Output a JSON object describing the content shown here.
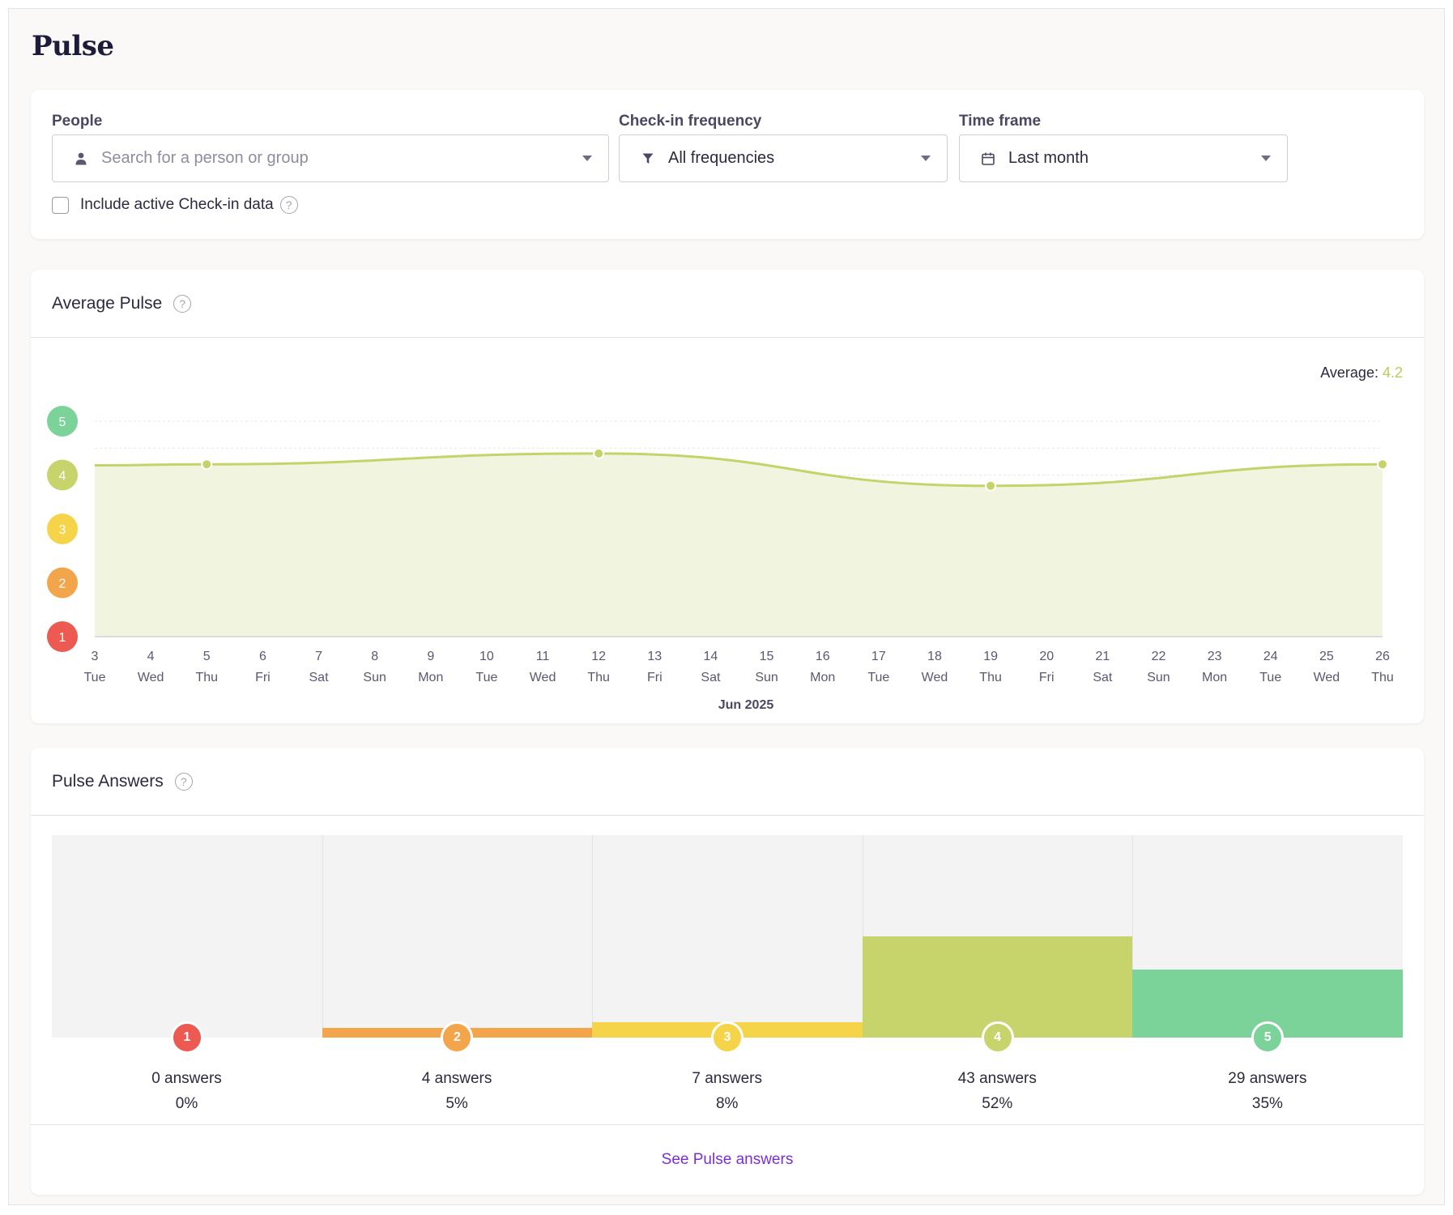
{
  "page": {
    "title": "Pulse"
  },
  "filters": {
    "people": {
      "label": "People",
      "placeholder": "Search for a person or group",
      "icon": "person-icon"
    },
    "frequency": {
      "label": "Check-in frequency",
      "value": "All frequencies",
      "icon": "filter-icon"
    },
    "timeframe": {
      "label": "Time frame",
      "value": "Last month",
      "icon": "calendar-icon"
    },
    "include_active": {
      "label": "Include active Check-in data",
      "checked": false
    }
  },
  "average_pulse": {
    "title": "Average Pulse",
    "average_label": "Average:",
    "average_value": "4.2",
    "help": "?"
  },
  "pulse_answers": {
    "title": "Pulse Answers",
    "help": "?",
    "link": "See Pulse answers",
    "buckets": [
      {
        "score": "1",
        "count_label": "0 answers",
        "pct_label": "0%",
        "fraction": 0.0,
        "color": "#ec5a52"
      },
      {
        "score": "2",
        "count_label": "4 answers",
        "pct_label": "5%",
        "fraction": 0.05,
        "color": "#f2a54a"
      },
      {
        "score": "3",
        "count_label": "7 answers",
        "pct_label": "8%",
        "fraction": 0.08,
        "color": "#f6d44a"
      },
      {
        "score": "4",
        "count_label": "43 answers",
        "pct_label": "52%",
        "fraction": 0.52,
        "color": "#c7d46b"
      },
      {
        "score": "5",
        "count_label": "29 answers",
        "pct_label": "35%",
        "fraction": 0.35,
        "color": "#7bd39a"
      }
    ]
  },
  "chart_data": {
    "type": "area",
    "title": "",
    "xlabel": "Jun 2025",
    "ylabel": "",
    "ylim": [
      1,
      5
    ],
    "y_levels": [
      {
        "value": 5,
        "label": "5",
        "color": "#7bd39a"
      },
      {
        "value": 4,
        "label": "4",
        "color": "#c7d46b"
      },
      {
        "value": 3,
        "label": "3",
        "color": "#f6d44a"
      },
      {
        "value": 2,
        "label": "2",
        "color": "#f2a54a"
      },
      {
        "value": 1,
        "label": "1",
        "color": "#ec5a52"
      }
    ],
    "x_ticks": [
      {
        "day": "3",
        "weekday": "Tue"
      },
      {
        "day": "4",
        "weekday": "Wed"
      },
      {
        "day": "5",
        "weekday": "Thu"
      },
      {
        "day": "6",
        "weekday": "Fri"
      },
      {
        "day": "7",
        "weekday": "Sat"
      },
      {
        "day": "8",
        "weekday": "Sun"
      },
      {
        "day": "9",
        "weekday": "Mon"
      },
      {
        "day": "10",
        "weekday": "Tue"
      },
      {
        "day": "11",
        "weekday": "Wed"
      },
      {
        "day": "12",
        "weekday": "Thu"
      },
      {
        "day": "13",
        "weekday": "Fri"
      },
      {
        "day": "14",
        "weekday": "Sat"
      },
      {
        "day": "15",
        "weekday": "Sun"
      },
      {
        "day": "16",
        "weekday": "Mon"
      },
      {
        "day": "17",
        "weekday": "Tue"
      },
      {
        "day": "18",
        "weekday": "Wed"
      },
      {
        "day": "19",
        "weekday": "Thu"
      },
      {
        "day": "20",
        "weekday": "Fri"
      },
      {
        "day": "21",
        "weekday": "Sat"
      },
      {
        "day": "22",
        "weekday": "Sun"
      },
      {
        "day": "23",
        "weekday": "Mon"
      },
      {
        "day": "24",
        "weekday": "Tue"
      },
      {
        "day": "25",
        "weekday": "Wed"
      },
      {
        "day": "26",
        "weekday": "Thu"
      }
    ],
    "series": [
      {
        "values": [
          {
            "x": "2025-06-03",
            "y": 4.18
          },
          {
            "x": "2025-06-05",
            "y": 4.2
          },
          {
            "x": "2025-06-12",
            "y": 4.4
          },
          {
            "x": "2025-06-19",
            "y": 3.8
          },
          {
            "x": "2025-06-26",
            "y": 4.2
          }
        ]
      }
    ],
    "grid": true
  }
}
